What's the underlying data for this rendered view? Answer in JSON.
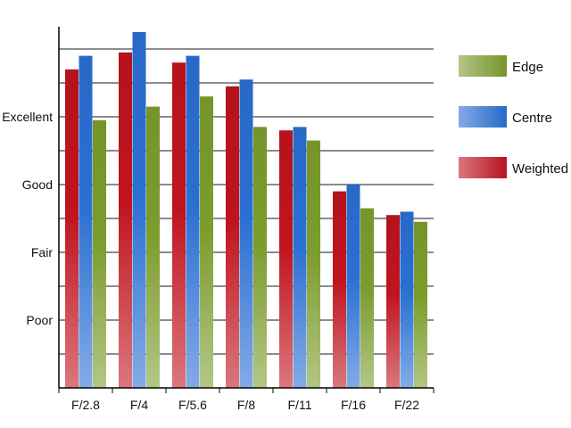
{
  "chart_data": {
    "type": "bar",
    "categories": [
      "F/2.8",
      "F/4",
      "F/5.6",
      "F/8",
      "F/11",
      "F/16",
      "F/22"
    ],
    "y_tick_labels": [
      {
        "label": "Poor",
        "value": 2
      },
      {
        "label": "Fair",
        "value": 4
      },
      {
        "label": "Good",
        "value": 6
      },
      {
        "label": "Excellent",
        "value": 8
      }
    ],
    "ylim": [
      0,
      10.5
    ],
    "grid": true,
    "legend_position": "right",
    "series": [
      {
        "name": "Weighted",
        "color": "#c0141e",
        "values": [
          9.4,
          9.9,
          9.6,
          8.9,
          7.6,
          5.8,
          5.1
        ]
      },
      {
        "name": "Centre",
        "color": "#2a6fd2",
        "values": [
          9.8,
          10.5,
          9.8,
          9.1,
          7.7,
          6.0,
          5.2
        ]
      },
      {
        "name": "Edge",
        "color": "#7c9c2c",
        "values": [
          7.9,
          8.3,
          8.6,
          7.7,
          7.3,
          5.3,
          4.9
        ]
      }
    ],
    "legend_order": [
      "Edge",
      "Centre",
      "Weighted"
    ]
  }
}
